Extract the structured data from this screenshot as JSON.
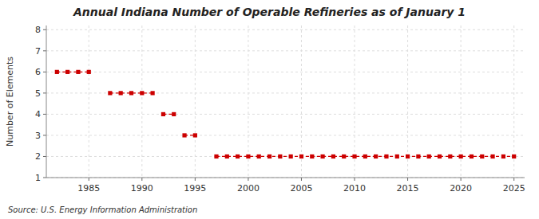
{
  "chart_data": {
    "type": "line",
    "title": "Annual Indiana Number of Operable Refineries as of January 1",
    "ylabel": "Number of Elements",
    "source": "Source: U.S. Energy Information Administration",
    "x": [
      1982,
      1983,
      1984,
      1985,
      1987,
      1988,
      1989,
      1990,
      1991,
      1992,
      1993,
      1994,
      1995,
      1997,
      1998,
      1999,
      2000,
      2001,
      2002,
      2003,
      2004,
      2005,
      2006,
      2007,
      2008,
      2009,
      2010,
      2011,
      2012,
      2013,
      2014,
      2015,
      2016,
      2017,
      2018,
      2019,
      2020,
      2021,
      2022,
      2023,
      2024,
      2025
    ],
    "values": [
      6,
      6,
      6,
      6,
      5,
      5,
      5,
      5,
      5,
      4,
      4,
      3,
      3,
      2,
      2,
      2,
      2,
      2,
      2,
      2,
      2,
      2,
      2,
      2,
      2,
      2,
      2,
      2,
      2,
      2,
      2,
      2,
      2,
      2,
      2,
      2,
      2,
      2,
      2,
      2,
      2,
      2
    ],
    "color": "#cc0000",
    "marker": "square",
    "line_style": "dashed",
    "xlim": [
      1981,
      2026
    ],
    "ylim": [
      1,
      8.2
    ],
    "xticks": [
      1985,
      1990,
      1995,
      2000,
      2005,
      2010,
      2015,
      2020,
      2025
    ],
    "yticks": [
      1,
      2,
      3,
      4,
      5,
      6,
      7,
      8
    ],
    "grid": true
  }
}
